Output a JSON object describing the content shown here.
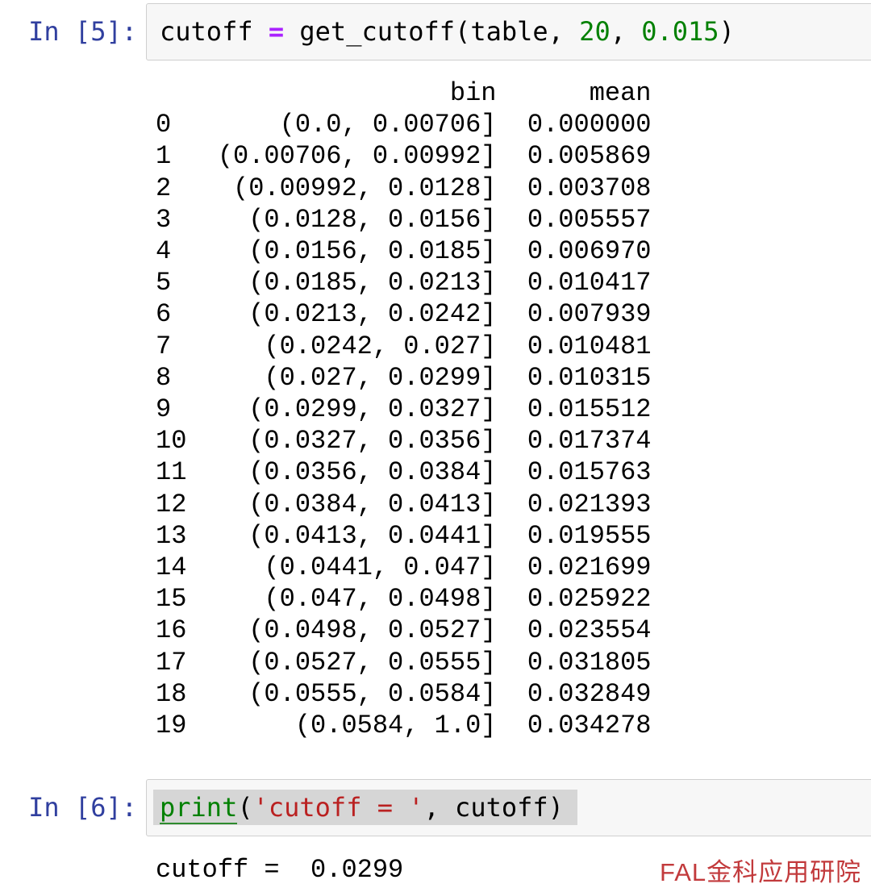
{
  "notebook": {
    "cells": [
      {
        "prompt": "In [5]:",
        "code_tokens": [
          {
            "text": "cutoff ",
            "type": "plain"
          },
          {
            "text": "=",
            "type": "operator"
          },
          {
            "text": " get_cutoff(table, ",
            "type": "plain"
          },
          {
            "text": "20",
            "type": "number"
          },
          {
            "text": ", ",
            "type": "plain"
          },
          {
            "text": "0.015",
            "type": "number"
          },
          {
            "text": ")",
            "type": "plain"
          }
        ],
        "selected": false,
        "output_dataframe": {
          "columns": [
            "bin",
            "mean"
          ],
          "rows": [
            [
              "0",
              "(0.0, 0.00706]",
              "0.000000"
            ],
            [
              "1",
              "(0.00706, 0.00992]",
              "0.005869"
            ],
            [
              "2",
              "(0.00992, 0.0128]",
              "0.003708"
            ],
            [
              "3",
              "(0.0128, 0.0156]",
              "0.005557"
            ],
            [
              "4",
              "(0.0156, 0.0185]",
              "0.006970"
            ],
            [
              "5",
              "(0.0185, 0.0213]",
              "0.010417"
            ],
            [
              "6",
              "(0.0213, 0.0242]",
              "0.007939"
            ],
            [
              "7",
              "(0.0242, 0.027]",
              "0.010481"
            ],
            [
              "8",
              "(0.027, 0.0299]",
              "0.010315"
            ],
            [
              "9",
              "(0.0299, 0.0327]",
              "0.015512"
            ],
            [
              "10",
              "(0.0327, 0.0356]",
              "0.017374"
            ],
            [
              "11",
              "(0.0356, 0.0384]",
              "0.015763"
            ],
            [
              "12",
              "(0.0384, 0.0413]",
              "0.021393"
            ],
            [
              "13",
              "(0.0413, 0.0441]",
              "0.019555"
            ],
            [
              "14",
              "(0.0441, 0.047]",
              "0.021699"
            ],
            [
              "15",
              "(0.047, 0.0498]",
              "0.025922"
            ],
            [
              "16",
              "(0.0498, 0.0527]",
              "0.023554"
            ],
            [
              "17",
              "(0.0527, 0.0555]",
              "0.031805"
            ],
            [
              "18",
              "(0.0555, 0.0584]",
              "0.032849"
            ],
            [
              "19",
              "(0.0584, 1.0]",
              "0.034278"
            ]
          ]
        }
      },
      {
        "prompt": "In [6]:",
        "code_tokens": [
          {
            "text": "print",
            "type": "builtin"
          },
          {
            "text": "(",
            "type": "plain"
          },
          {
            "text": "'cutoff = '",
            "type": "string"
          },
          {
            "text": ", cutoff)",
            "type": "plain"
          }
        ],
        "selected": true,
        "output_stream": "cutoff =  0.0299"
      }
    ],
    "watermark": "FAL金科应用研院"
  },
  "colors": {
    "prompt_blue": "#303F9F",
    "operator_purple": "#AA22FF",
    "number_green": "#008000",
    "builtin_green": "#008000",
    "string_red": "#BA2121",
    "cell_background": "#F7F7F7",
    "cell_border": "#CFCFCF",
    "selection_gray": "#D6D6D6",
    "watermark_red": "#C23A3C"
  }
}
